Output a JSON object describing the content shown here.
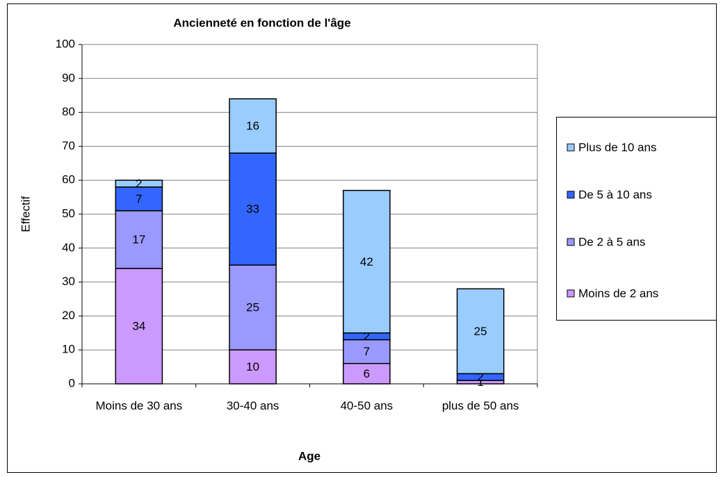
{
  "chart_data": {
    "type": "stacked_bar",
    "title": "Ancienneté en fonction de l'âge",
    "x_label": "Age",
    "y_label": "Effectif",
    "categories": [
      "Moins de 30 ans",
      "30-40 ans",
      "40-50 ans",
      "plus de 50 ans"
    ],
    "series": [
      {
        "name": "Moins de 2 ans",
        "color": "#cc99ff",
        "values": [
          34,
          10,
          6,
          1
        ]
      },
      {
        "name": "De 2 à 5 ans",
        "color": "#9999ff",
        "values": [
          17,
          25,
          7,
          null
        ]
      },
      {
        "name": "De 5 à 10 ans",
        "color": "#3366ff",
        "values": [
          7,
          33,
          2,
          2
        ]
      },
      {
        "name": "Plus de 10 ans",
        "color": "#99ccff",
        "values": [
          2,
          16,
          42,
          25
        ]
      }
    ],
    "ylim": [
      0,
      100
    ],
    "yticks": [
      0,
      10,
      20,
      30,
      40,
      50,
      60,
      70,
      80,
      90,
      100
    ],
    "grid": true,
    "legend": "right"
  }
}
